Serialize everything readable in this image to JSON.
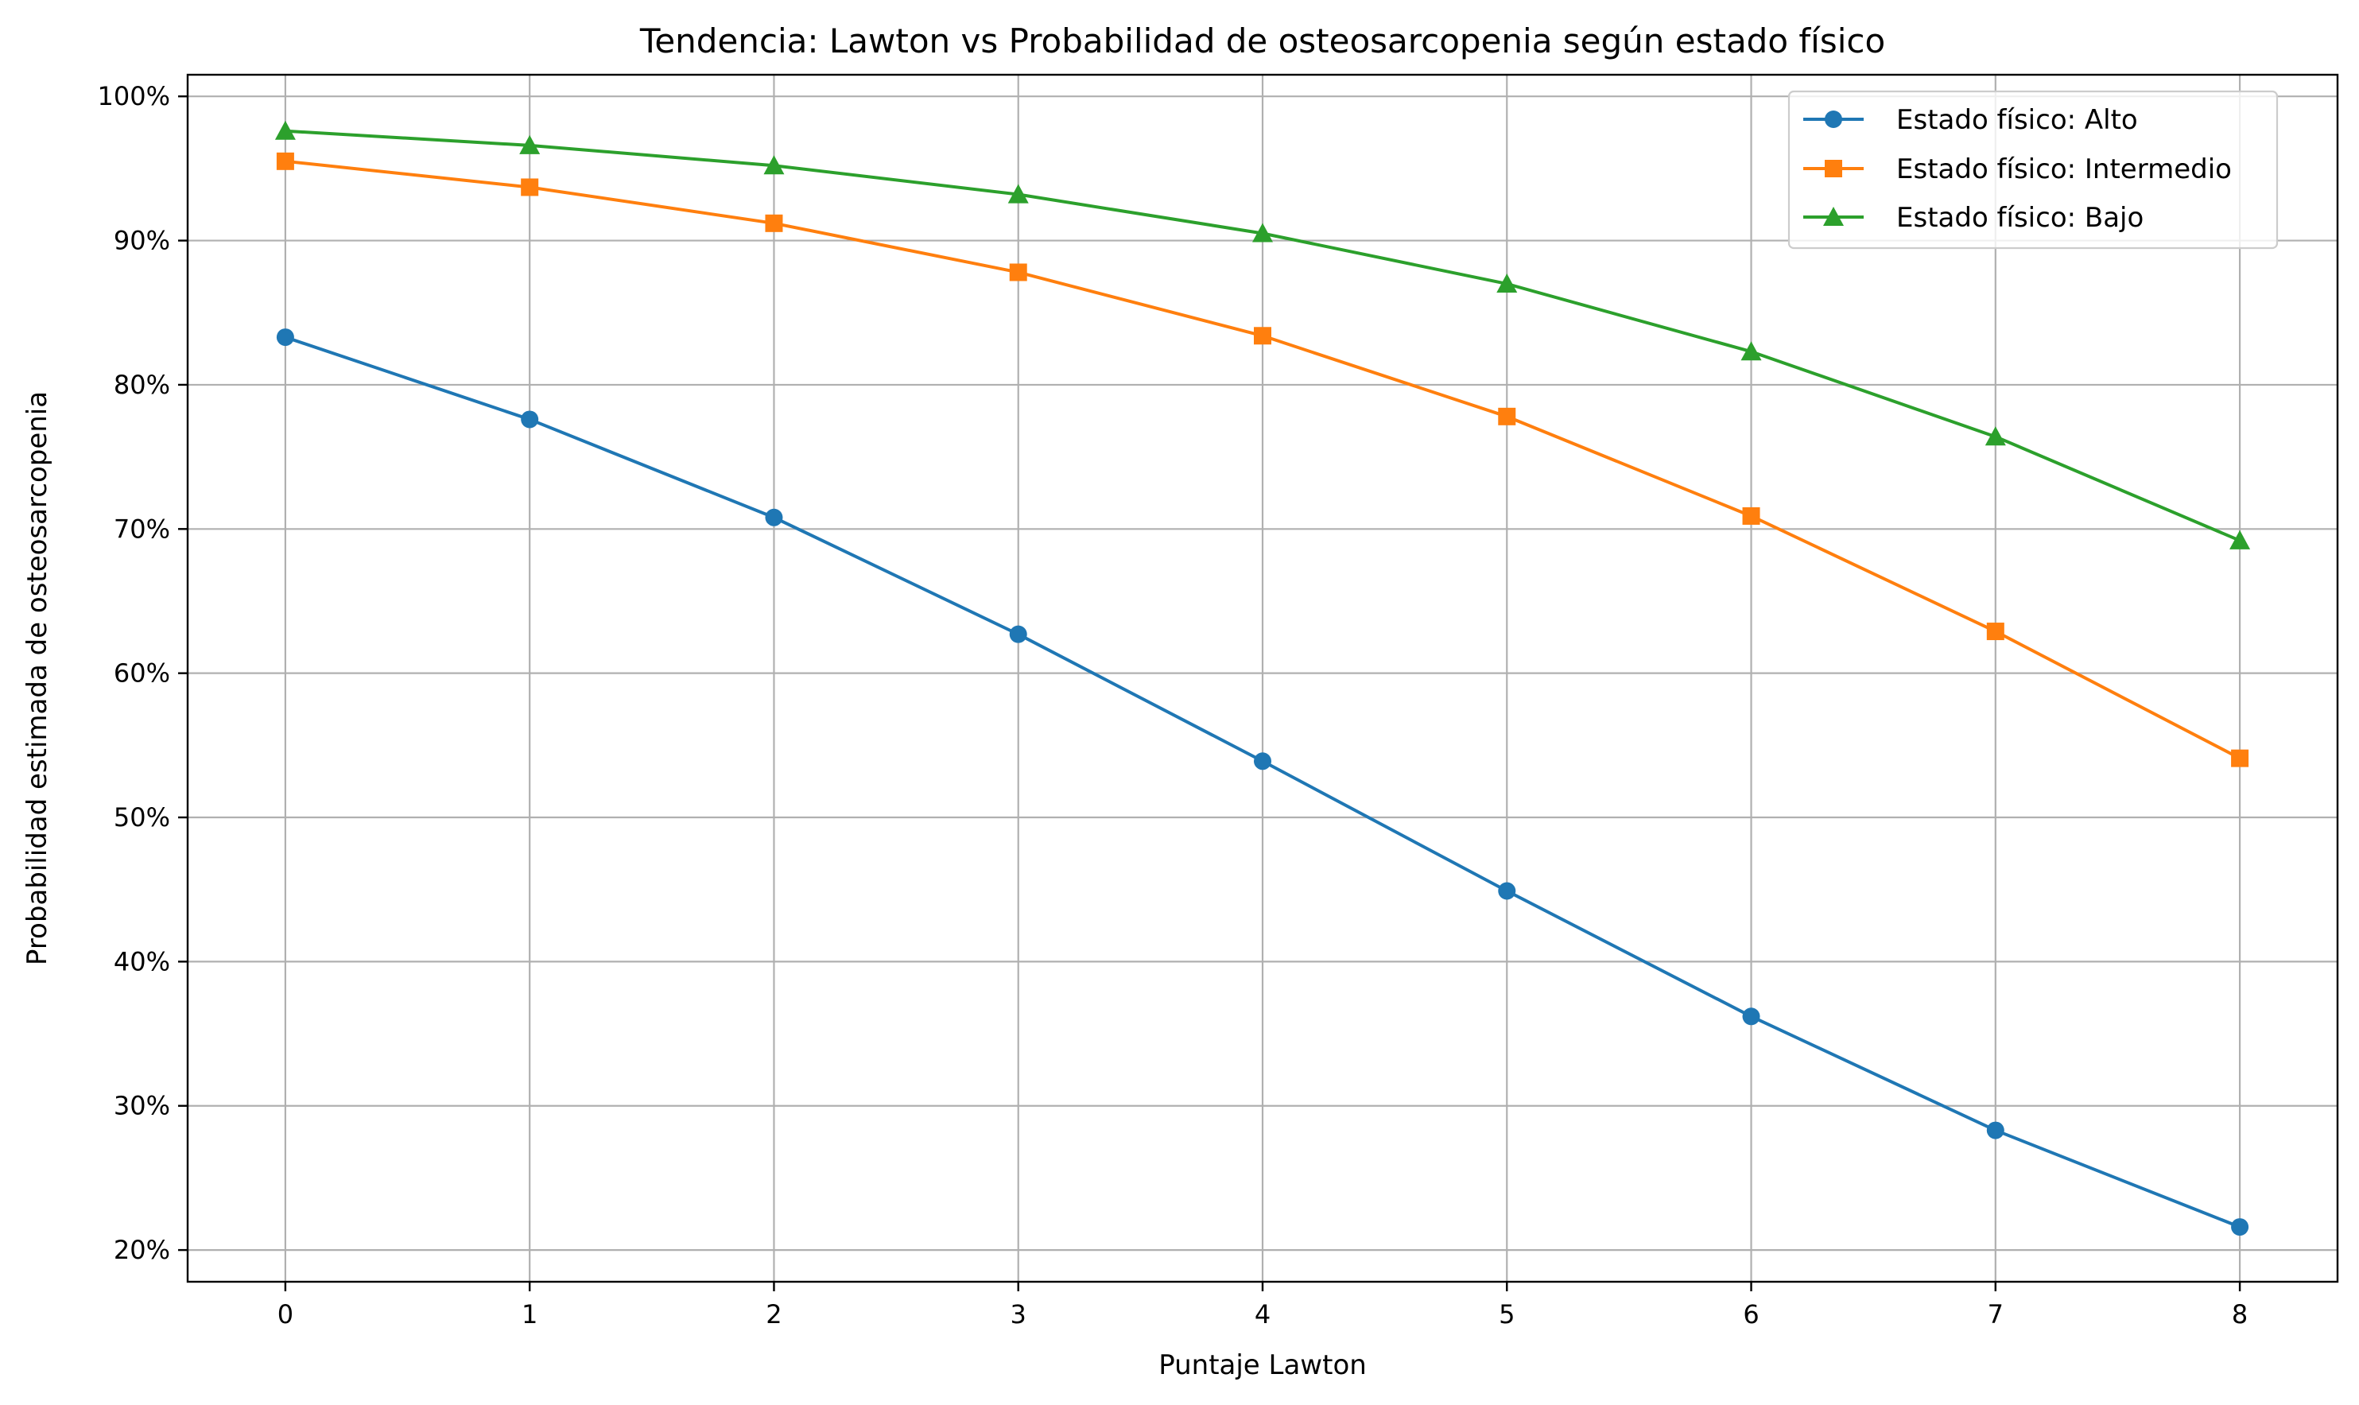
{
  "chart_data": {
    "type": "line",
    "title": "Tendencia: Lawton vs Probabilidad de osteosarcopenia según estado físico",
    "xlabel": "Puntaje Lawton",
    "ylabel": "Probabilidad estimada de osteosarcopenia",
    "x": [
      0,
      1,
      2,
      3,
      4,
      5,
      6,
      7,
      8
    ],
    "xlim": [
      -0.4,
      8.4
    ],
    "ylim": [
      17.8,
      101.5
    ],
    "x_ticks": [
      0,
      1,
      2,
      3,
      4,
      5,
      6,
      7,
      8
    ],
    "x_tick_labels": [
      "0",
      "1",
      "2",
      "3",
      "4",
      "5",
      "6",
      "7",
      "8"
    ],
    "y_ticks": [
      20,
      30,
      40,
      50,
      60,
      70,
      80,
      90,
      100
    ],
    "y_tick_labels": [
      "20%",
      "30%",
      "40%",
      "50%",
      "60%",
      "70%",
      "80%",
      "90%",
      "100%"
    ],
    "grid": true,
    "legend_position": "top-right",
    "series": [
      {
        "name": "Estado físico: Alto",
        "color": "#1f77b4",
        "marker": "circle",
        "values": [
          83.3,
          77.6,
          70.8,
          62.7,
          53.9,
          44.9,
          36.2,
          28.3,
          21.6
        ]
      },
      {
        "name": "Estado físico: Intermedio",
        "color": "#ff7f0e",
        "marker": "square",
        "values": [
          95.5,
          93.7,
          91.2,
          87.8,
          83.4,
          77.8,
          70.9,
          62.9,
          54.1
        ]
      },
      {
        "name": "Estado físico: Bajo",
        "color": "#2ca02c",
        "marker": "triangle",
        "values": [
          97.6,
          96.6,
          95.2,
          93.2,
          90.5,
          87.0,
          82.3,
          76.4,
          69.2
        ]
      }
    ]
  }
}
